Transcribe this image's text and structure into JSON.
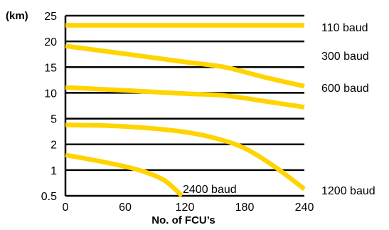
{
  "chart_data": {
    "type": "line",
    "title": "",
    "unit_label": "(km)",
    "xlabel": "No. of FCU’s",
    "ylabel": "",
    "x_ticks": [
      "0",
      "60",
      "120",
      "180",
      "240"
    ],
    "xlim": [
      0,
      240
    ],
    "y_ticks": [
      "0.5",
      "1",
      "2",
      "5",
      "10",
      "15",
      "20",
      "25"
    ],
    "y_scale": "nonuniform-log-like",
    "grid": "horizontal",
    "line_color": "#FFD400",
    "series": [
      {
        "name": "110 baud",
        "x": [
          0,
          60,
          120,
          180,
          240
        ],
        "y": [
          23,
          23,
          23,
          23,
          23
        ]
      },
      {
        "name": "300 baud",
        "x": [
          0,
          60,
          120,
          160,
          200,
          240
        ],
        "y": [
          19.0,
          17.4,
          15.9,
          15.0,
          12.8,
          11.1
        ]
      },
      {
        "name": "600 baud",
        "x": [
          0,
          60,
          120,
          160,
          200,
          240
        ],
        "y": [
          10.9,
          10.4,
          9.8,
          9.3,
          8.0,
          6.8
        ]
      },
      {
        "name": "1200 baud",
        "x": [
          0,
          40,
          80,
          120,
          150,
          180,
          210,
          240
        ],
        "y": [
          4.0,
          3.9,
          3.6,
          3.1,
          2.5,
          1.8,
          1.1,
          0.6
        ]
      },
      {
        "name": "2400 baud",
        "x": [
          0,
          30,
          60,
          80,
          100,
          117
        ],
        "y": [
          1.5,
          1.3,
          1.1,
          0.95,
          0.75,
          0.5
        ]
      }
    ]
  }
}
